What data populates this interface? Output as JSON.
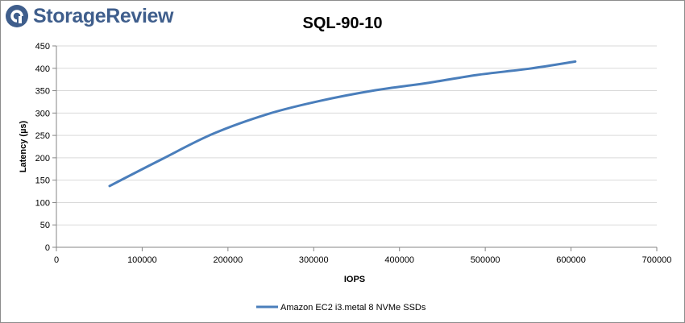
{
  "branding": {
    "logo_text": "StorageReview",
    "logo_color": "#3f5e8c",
    "logo_icon": "storagereview-logo-icon"
  },
  "chart_data": {
    "type": "line",
    "title": "SQL-90-10",
    "xlabel": "IOPS",
    "ylabel": "Latency (µs)",
    "xlim": [
      0,
      700000
    ],
    "ylim": [
      0,
      450
    ],
    "xticks": [
      0,
      100000,
      200000,
      300000,
      400000,
      500000,
      600000,
      700000
    ],
    "yticks": [
      0,
      50,
      100,
      150,
      200,
      250,
      300,
      350,
      400,
      450
    ],
    "grid": true,
    "legend_position": "bottom",
    "series": [
      {
        "name": "Amazon EC2 i3.metal 8 NVMe SSDs",
        "color": "#4a7ebb",
        "points": [
          [
            62000,
            137
          ],
          [
            123000,
            197
          ],
          [
            183000,
            254
          ],
          [
            247000,
            298
          ],
          [
            307000,
            327
          ],
          [
            372000,
            351
          ],
          [
            432000,
            367
          ],
          [
            490000,
            385
          ],
          [
            551000,
            399
          ],
          [
            605000,
            415
          ]
        ]
      }
    ]
  }
}
